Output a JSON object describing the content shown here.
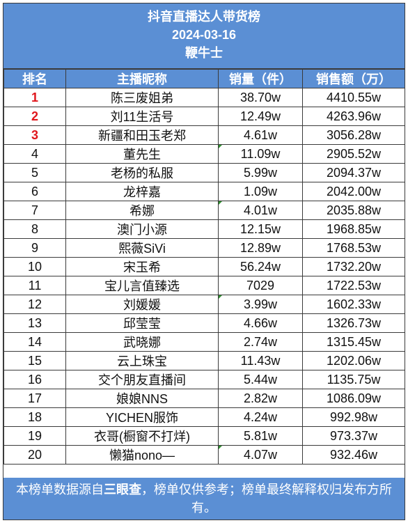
{
  "header": {
    "title": "抖音直播达人带货榜",
    "date": "2024-03-16",
    "brand": "鞭牛士"
  },
  "columns": [
    "排名",
    "主播昵称",
    "销量（件）",
    "销售额（万）"
  ],
  "rows": [
    {
      "rank": "1",
      "name": "陈三废姐弟",
      "sales": "38.70w",
      "revenue": "4410.55w",
      "top": true,
      "mark": false
    },
    {
      "rank": "2",
      "name": "刘11生活号",
      "sales": "12.49w",
      "revenue": "4263.96w",
      "top": true,
      "mark": false
    },
    {
      "rank": "3",
      "name": "新疆和田玉老郑",
      "sales": "4.61w",
      "revenue": "3056.28w",
      "top": true,
      "mark": false
    },
    {
      "rank": "4",
      "name": "董先生",
      "sales": "11.09w",
      "revenue": "2905.52w",
      "top": false,
      "mark": true
    },
    {
      "rank": "5",
      "name": "老杨的私服",
      "sales": "5.99w",
      "revenue": "2094.37w",
      "top": false,
      "mark": false
    },
    {
      "rank": "6",
      "name": "龙梓嘉",
      "sales": "1.09w",
      "revenue": "2042.00w",
      "top": false,
      "mark": false
    },
    {
      "rank": "7",
      "name": "希娜",
      "sales": "4.01w",
      "revenue": "2035.88w",
      "top": false,
      "mark": true
    },
    {
      "rank": "8",
      "name": "澳门小源",
      "sales": "12.15w",
      "revenue": "1968.85w",
      "top": false,
      "mark": false
    },
    {
      "rank": "9",
      "name": "熙薇SiVi",
      "sales": "12.89w",
      "revenue": "1768.53w",
      "top": false,
      "mark": false
    },
    {
      "rank": "10",
      "name": "宋玉希",
      "sales": "56.24w",
      "revenue": "1732.20w",
      "top": false,
      "mark": false
    },
    {
      "rank": "11",
      "name": "宝儿言值臻选",
      "sales": "7029",
      "revenue": "1722.53w",
      "top": false,
      "mark": false
    },
    {
      "rank": "12",
      "name": "刘媛媛",
      "sales": "3.99w",
      "revenue": "1602.33w",
      "top": false,
      "mark": true
    },
    {
      "rank": "13",
      "name": "邱莹莹",
      "sales": "4.66w",
      "revenue": "1326.73w",
      "top": false,
      "mark": false
    },
    {
      "rank": "14",
      "name": "武晓娜",
      "sales": "2.74w",
      "revenue": "1315.45w",
      "top": false,
      "mark": false
    },
    {
      "rank": "15",
      "name": "云上珠宝",
      "sales": "11.43w",
      "revenue": "1202.06w",
      "top": false,
      "mark": false
    },
    {
      "rank": "16",
      "name": "交个朋友直播间",
      "sales": "5.44w",
      "revenue": "1135.75w",
      "top": false,
      "mark": false
    },
    {
      "rank": "17",
      "name": "娘娘NNS",
      "sales": "2.82w",
      "revenue": "1086.09w",
      "top": false,
      "mark": false
    },
    {
      "rank": "18",
      "name": "YICHEN服饰",
      "sales": "4.24w",
      "revenue": "992.98w",
      "top": false,
      "mark": false
    },
    {
      "rank": "19",
      "name": "衣哥(橱窗不打烊)",
      "sales": "5.81w",
      "revenue": "973.37w",
      "top": false,
      "mark": false
    },
    {
      "rank": "20",
      "name": "懒猫nono—",
      "sales": "4.07w",
      "revenue": "932.46w",
      "top": false,
      "mark": true
    }
  ],
  "footer": {
    "text_before": "本榜单数据源自",
    "source": "三眼查",
    "text_after": "，榜单仅供参考；榜单最终解释权归发布方所有。"
  },
  "colors": {
    "header_bg": "#5b8fd4",
    "top_rank": "#e0161c",
    "corner_mark": "#2f8f2f"
  }
}
